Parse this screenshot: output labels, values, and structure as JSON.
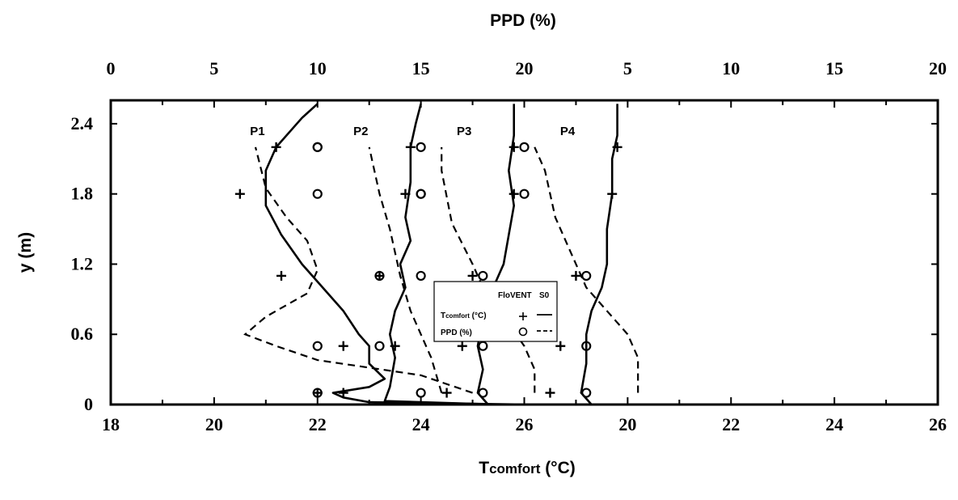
{
  "chart_data": {
    "type": "scatter",
    "top_axis_title": "PPD (%)",
    "left_axis_title": "y (m)",
    "bottom_axis_title_main": "T",
    "bottom_axis_title_sub": "comfort",
    "bottom_axis_title_unit": " (°C)",
    "y_ticks": [
      "0",
      "0.6",
      "1.2",
      "1.8",
      "2.4"
    ],
    "y_values": [
      0,
      0.6,
      1.2,
      1.8,
      2.4
    ],
    "ylim": [
      0,
      2.6
    ],
    "xlim_t": [
      18,
      26
    ],
    "xlim_ppd": [
      0,
      20
    ],
    "ppd_ticks": [
      "0",
      "5",
      "10",
      "15",
      "20",
      "5",
      "10",
      "15",
      "20",
      "5",
      "10",
      "15",
      "20",
      "5",
      "10",
      "15",
      "20"
    ],
    "t_ticks": [
      "18",
      "20",
      "22",
      "24",
      "26",
      "20",
      "22",
      "24",
      "26",
      "20",
      "22",
      "24",
      "26",
      "20",
      "22",
      "24",
      "26"
    ],
    "legend": {
      "header_a": "FloVENT",
      "header_b": "S0",
      "row1_main": "T",
      "row1_sub": "comfort",
      "row1_unit": " (°C)",
      "row2": "PPD (%)"
    },
    "panels": [
      {
        "label": "P1",
        "offset_t": 0,
        "floVENT_t": [
          [
            22.0,
            0.1
          ],
          [
            22.5,
            0.5
          ],
          [
            21.3,
            1.1
          ],
          [
            20.5,
            1.8
          ],
          [
            21.2,
            2.2
          ]
        ],
        "floVENT_ppd": [
          [
            10,
            0.1
          ],
          [
            10,
            0.5
          ],
          [
            15,
            1.1
          ],
          [
            15,
            1.8
          ],
          [
            10,
            2.2
          ]
        ],
        "s0_t": [
          [
            26.0,
            0.0
          ],
          [
            23.0,
            0.02
          ],
          [
            22.5,
            0.06
          ],
          [
            22.3,
            0.1
          ],
          [
            23.0,
            0.15
          ],
          [
            23.3,
            0.22
          ],
          [
            23.0,
            0.35
          ],
          [
            23.0,
            0.5
          ],
          [
            22.8,
            0.6
          ],
          [
            22.5,
            0.8
          ],
          [
            22.1,
            1.0
          ],
          [
            21.7,
            1.2
          ],
          [
            21.3,
            1.45
          ],
          [
            21.0,
            1.7
          ],
          [
            21.0,
            2.0
          ],
          [
            21.2,
            2.2
          ],
          [
            21.7,
            2.45
          ],
          [
            22.0,
            2.57
          ]
        ],
        "s0_ppd": [
          [
            17.5,
            0.1
          ],
          [
            15.0,
            0.25
          ],
          [
            10.0,
            0.38
          ],
          [
            8.0,
            0.5
          ],
          [
            6.5,
            0.6
          ],
          [
            7.5,
            0.75
          ],
          [
            9.5,
            0.95
          ],
          [
            10.0,
            1.15
          ],
          [
            9.5,
            1.4
          ],
          [
            8.5,
            1.6
          ],
          [
            7.5,
            1.85
          ],
          [
            7.0,
            2.2
          ]
        ]
      },
      {
        "label": "P2",
        "offset_t": 2,
        "floVENT_t": [
          [
            20.5,
            0.1
          ],
          [
            21.5,
            0.5
          ],
          [
            21.2,
            1.1
          ],
          [
            21.7,
            1.8
          ],
          [
            21.8,
            2.2
          ]
        ],
        "floVENT_ppd": [
          [
            10,
            0.1
          ],
          [
            8,
            0.5
          ],
          [
            8,
            1.1
          ],
          [
            5,
            1.8
          ],
          [
            5,
            2.2
          ]
        ],
        "s0_t": [
          [
            23.5,
            0.0
          ],
          [
            21.3,
            0.03
          ],
          [
            21.4,
            0.15
          ],
          [
            21.5,
            0.4
          ],
          [
            21.4,
            0.6
          ],
          [
            21.5,
            0.8
          ],
          [
            21.7,
            1.0
          ],
          [
            21.6,
            1.2
          ],
          [
            21.8,
            1.4
          ],
          [
            21.7,
            1.6
          ],
          [
            21.8,
            1.9
          ],
          [
            21.8,
            2.2
          ],
          [
            21.9,
            2.4
          ],
          [
            22.0,
            2.57
          ]
        ],
        "s0_ppd": [
          [
            11.0,
            0.1
          ],
          [
            10.5,
            0.4
          ],
          [
            9.5,
            0.8
          ],
          [
            9.0,
            1.1
          ],
          [
            8.5,
            1.5
          ],
          [
            8.0,
            1.8
          ],
          [
            7.5,
            2.2
          ]
        ]
      },
      {
        "label": "P3",
        "offset_t": 4,
        "floVENT_t": [
          [
            20.5,
            0.1
          ],
          [
            20.8,
            0.5
          ],
          [
            21.0,
            1.1
          ],
          [
            21.8,
            1.8
          ],
          [
            21.8,
            2.2
          ]
        ],
        "floVENT_ppd": [
          [
            8,
            0.1
          ],
          [
            8,
            0.5
          ],
          [
            8,
            1.1
          ],
          [
            5,
            1.8
          ],
          [
            5,
            2.2
          ]
        ],
        "s0_t": [
          [
            21.3,
            0.0
          ],
          [
            21.1,
            0.1
          ],
          [
            21.2,
            0.3
          ],
          [
            21.1,
            0.5
          ],
          [
            21.2,
            0.75
          ],
          [
            21.4,
            1.0
          ],
          [
            21.6,
            1.2
          ],
          [
            21.7,
            1.45
          ],
          [
            21.8,
            1.7
          ],
          [
            21.7,
            2.0
          ],
          [
            21.8,
            2.3
          ],
          [
            21.8,
            2.57
          ]
        ],
        "s0_ppd": [
          [
            10.5,
            0.1
          ],
          [
            10.5,
            0.3
          ],
          [
            10.0,
            0.5
          ],
          [
            9.0,
            0.75
          ],
          [
            8.0,
            1.0
          ],
          [
            7.5,
            1.2
          ],
          [
            6.5,
            1.55
          ],
          [
            6.0,
            2.0
          ],
          [
            6.0,
            2.2
          ]
        ]
      },
      {
        "label": "P4",
        "offset_t": 6,
        "floVENT_t": [
          [
            20.5,
            0.1
          ],
          [
            20.7,
            0.5
          ],
          [
            21.0,
            1.1
          ],
          [
            21.7,
            1.8
          ],
          [
            21.8,
            2.2
          ]
        ],
        "floVENT_ppd": [
          [
            8,
            0.1
          ],
          [
            8,
            0.5
          ],
          [
            8,
            1.1
          ],
          [
            5,
            1.8
          ],
          [
            5,
            2.2
          ]
        ],
        "s0_t": [
          [
            21.3,
            0.0
          ],
          [
            21.1,
            0.1
          ],
          [
            21.2,
            0.35
          ],
          [
            21.2,
            0.6
          ],
          [
            21.3,
            0.8
          ],
          [
            21.5,
            1.0
          ],
          [
            21.6,
            1.2
          ],
          [
            21.6,
            1.5
          ],
          [
            21.7,
            1.8
          ],
          [
            21.7,
            2.1
          ],
          [
            21.8,
            2.3
          ],
          [
            21.8,
            2.57
          ]
        ],
        "s0_ppd": [
          [
            10.5,
            0.1
          ],
          [
            10.5,
            0.4
          ],
          [
            10.0,
            0.6
          ],
          [
            9.0,
            0.8
          ],
          [
            8.0,
            1.0
          ],
          [
            7.5,
            1.2
          ],
          [
            6.5,
            1.6
          ],
          [
            6.0,
            2.0
          ],
          [
            5.5,
            2.2
          ]
        ]
      }
    ]
  }
}
